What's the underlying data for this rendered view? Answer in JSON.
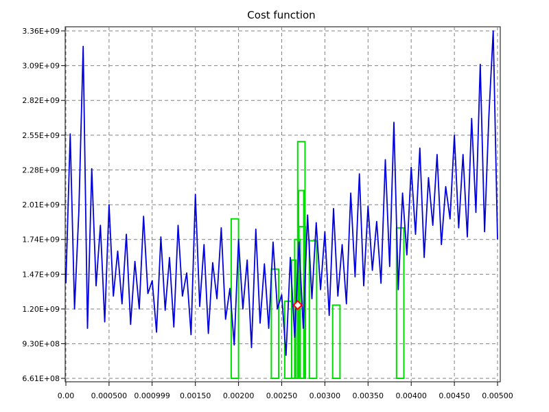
{
  "chart_data": {
    "type": "line",
    "title": "Cost function",
    "xlabel": "",
    "ylabel": "",
    "xlim": [
      0,
      0.005
    ],
    "ylim": [
      661000000,
      3360000000
    ],
    "x_ticks": [
      {
        "value": 0.0,
        "label": "0.00"
      },
      {
        "value": 0.0005,
        "label": "0.000500"
      },
      {
        "value": 0.000999,
        "label": "0.000999"
      },
      {
        "value": 0.0015,
        "label": "0.00150"
      },
      {
        "value": 0.002,
        "label": "0.00200"
      },
      {
        "value": 0.0025,
        "label": "0.00250"
      },
      {
        "value": 0.003,
        "label": "0.00300"
      },
      {
        "value": 0.0035,
        "label": "0.00350"
      },
      {
        "value": 0.004,
        "label": "0.00400"
      },
      {
        "value": 0.0045,
        "label": "0.00450"
      },
      {
        "value": 0.005,
        "label": "0.00500"
      }
    ],
    "y_ticks": [
      {
        "value": 661000000,
        "label": "6.61E+08"
      },
      {
        "value": 930000000,
        "label": "9.30E+08"
      },
      {
        "value": 1200000000,
        "label": "1.20E+09"
      },
      {
        "value": 1470000000,
        "label": "1.47E+09"
      },
      {
        "value": 1740000000,
        "label": "1.74E+09"
      },
      {
        "value": 2010000000,
        "label": "2.01E+09"
      },
      {
        "value": 2280000000,
        "label": "2.28E+09"
      },
      {
        "value": 2550000000,
        "label": "2.55E+09"
      },
      {
        "value": 2820000000,
        "label": "2.82E+09"
      },
      {
        "value": 3090000000,
        "label": "3.09E+09"
      },
      {
        "value": 3360000000,
        "label": "3.36E+09"
      }
    ],
    "grid": true,
    "series": [
      {
        "color": "#0000dd",
        "x": [
          0.0,
          5e-05,
          0.0001,
          0.00015,
          0.0002,
          0.00025,
          0.0003,
          0.00035,
          0.0004,
          0.00045,
          0.0005,
          0.00055,
          0.0006,
          0.00065,
          0.0007,
          0.00075,
          0.0008,
          0.00085,
          0.0009,
          0.00095,
          0.001,
          0.00105,
          0.0011,
          0.00115,
          0.0012,
          0.00125,
          0.0013,
          0.00135,
          0.0014,
          0.00145,
          0.0015,
          0.00155,
          0.0016,
          0.00165,
          0.0017,
          0.00175,
          0.0018,
          0.00185,
          0.0019,
          0.00195,
          0.002,
          0.00205,
          0.0021,
          0.00215,
          0.0022,
          0.00225,
          0.0023,
          0.00235,
          0.0024,
          0.00245,
          0.0025,
          0.00255,
          0.0026,
          0.00265,
          0.0027,
          0.00275,
          0.0028,
          0.00285,
          0.0029,
          0.00295,
          0.003,
          0.00305,
          0.0031,
          0.00315,
          0.0032,
          0.00325,
          0.0033,
          0.00335,
          0.0034,
          0.00345,
          0.0035,
          0.00355,
          0.0036,
          0.00365,
          0.0037,
          0.00375,
          0.0038,
          0.00385,
          0.0039,
          0.00395,
          0.004,
          0.00405,
          0.0041,
          0.00415,
          0.0042,
          0.00425,
          0.0043,
          0.00435,
          0.0044,
          0.00445,
          0.0045,
          0.00455,
          0.0046,
          0.00465,
          0.0047,
          0.00475,
          0.0048,
          0.00485,
          0.0049,
          0.00495,
          0.005
        ],
        "y": [
          1400000000,
          2560000000,
          1200000000,
          1960000000,
          3240000000,
          1050000000,
          2290000000,
          1380000000,
          1850000000,
          1100000000,
          2010000000,
          1300000000,
          1650000000,
          1240000000,
          1780000000,
          1080000000,
          1570000000,
          1200000000,
          1920000000,
          1320000000,
          1420000000,
          1020000000,
          1760000000,
          1190000000,
          1600000000,
          1060000000,
          1850000000,
          1300000000,
          1480000000,
          1000000000,
          2090000000,
          1220000000,
          1700000000,
          1010000000,
          1560000000,
          1280000000,
          1830000000,
          1120000000,
          1360000000,
          920000000,
          1740000000,
          1200000000,
          1580000000,
          900000000,
          1820000000,
          1090000000,
          1550000000,
          1050000000,
          1720000000,
          1200000000,
          1310000000,
          840000000,
          1600000000,
          980000000,
          1720000000,
          1050000000,
          1930000000,
          1280000000,
          1870000000,
          1350000000,
          1800000000,
          1150000000,
          1980000000,
          1300000000,
          1700000000,
          1240000000,
          2100000000,
          1450000000,
          2250000000,
          1380000000,
          2000000000,
          1500000000,
          1880000000,
          1400000000,
          2360000000,
          1530000000,
          2650000000,
          1350000000,
          2100000000,
          1620000000,
          2300000000,
          1780000000,
          2450000000,
          1600000000,
          2220000000,
          1850000000,
          2400000000,
          1700000000,
          2150000000,
          1900000000,
          2550000000,
          1830000000,
          2400000000,
          1760000000,
          2680000000,
          1950000000,
          3100000000,
          1800000000,
          2700000000,
          3360000000,
          1740000000
        ]
      }
    ],
    "bars": {
      "color": "#00dd00",
      "items": [
        {
          "x0": 0.001915,
          "x1": 0.002,
          "top": 1900000000
        },
        {
          "x0": 0.00238,
          "x1": 0.002465,
          "top": 1510000000
        },
        {
          "x0": 0.002535,
          "x1": 0.002615,
          "top": 1260000000
        },
        {
          "x0": 0.002615,
          "x1": 0.002665,
          "top": 1580000000
        },
        {
          "x0": 0.00265,
          "x1": 0.002715,
          "top": 1740000000
        },
        {
          "x0": 0.002685,
          "x1": 0.00277,
          "top": 2500000000
        },
        {
          "x0": 0.002695,
          "x1": 0.002755,
          "top": 2120000000
        },
        {
          "x0": 0.0027,
          "x1": 0.002775,
          "top": 1840000000
        },
        {
          "x0": 0.00282,
          "x1": 0.002905,
          "top": 1730000000
        },
        {
          "x0": 0.00309,
          "x1": 0.003175,
          "top": 1230000000
        },
        {
          "x0": 0.00383,
          "x1": 0.003915,
          "top": 1830000000
        }
      ]
    },
    "marker": {
      "x": 0.002685,
      "y": 1230000000,
      "shape": "diamond",
      "color": "#ff0000"
    }
  }
}
